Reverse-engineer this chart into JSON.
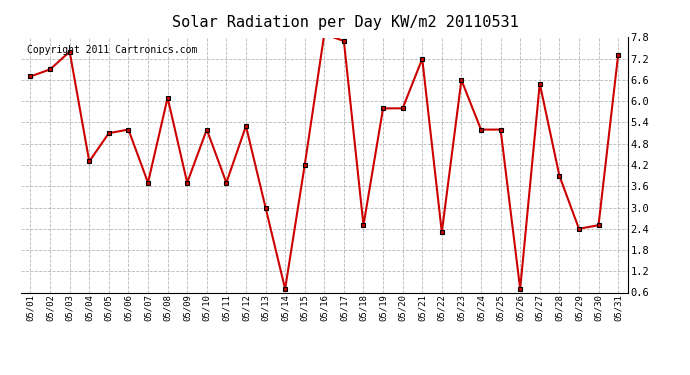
{
  "title": "Solar Radiation per Day KW/m2 20110531",
  "copyright": "Copyright 2011 Cartronics.com",
  "dates": [
    "05/01",
    "05/02",
    "05/03",
    "05/04",
    "05/05",
    "05/06",
    "05/07",
    "05/08",
    "05/09",
    "05/10",
    "05/11",
    "05/12",
    "05/13",
    "05/14",
    "05/15",
    "05/16",
    "05/17",
    "05/18",
    "05/19",
    "05/20",
    "05/21",
    "05/22",
    "05/23",
    "05/24",
    "05/25",
    "05/26",
    "05/27",
    "05/28",
    "05/29",
    "05/30",
    "05/31"
  ],
  "values": [
    6.7,
    6.9,
    7.4,
    4.3,
    5.1,
    5.2,
    3.7,
    6.1,
    3.7,
    5.2,
    3.7,
    5.3,
    3.0,
    0.7,
    4.2,
    7.9,
    7.7,
    2.5,
    5.8,
    5.8,
    7.2,
    2.3,
    6.6,
    5.2,
    5.2,
    0.7,
    6.5,
    3.9,
    2.4,
    2.5,
    7.3
  ],
  "line_color": "#cc0000",
  "marker_color": "#000000",
  "marker_face_color": "#cc0000",
  "bg_color": "#ffffff",
  "grid_color": "#999999",
  "ylim": [
    0.6,
    7.8
  ],
  "yticks": [
    0.6,
    1.2,
    1.8,
    2.4,
    3.0,
    3.6,
    4.2,
    4.8,
    5.4,
    6.0,
    6.6,
    7.2,
    7.8
  ],
  "title_fontsize": 11,
  "copyright_fontsize": 7
}
